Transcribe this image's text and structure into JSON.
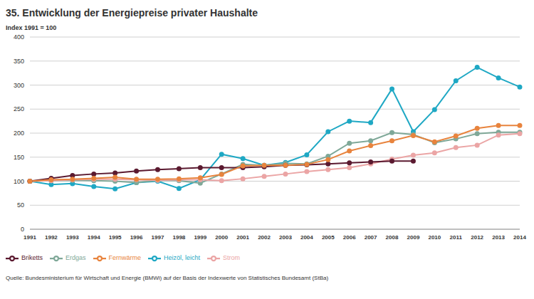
{
  "chart_data": {
    "type": "line",
    "title": "35. Entwicklung der Energiepreise privater Haushalte",
    "subtitle": "Index 1991 = 100",
    "source": "Quelle: Bundesministerium für Wirtschaft und Energie (BMWi) auf der Basis der Indexwerte von Statistisches Bundesamt (StBa)",
    "categories": [
      "1991",
      "1992",
      "1993",
      "1994",
      "1995",
      "1996",
      "1997",
      "1998",
      "1999",
      "2000",
      "2001",
      "2002",
      "2003",
      "2004",
      "2005",
      "2006",
      "2007",
      "2008",
      "2009",
      "2010",
      "2011",
      "2012",
      "2013",
      "2014"
    ],
    "series": [
      {
        "name": "Heizöl, leicht",
        "color": "#1fa8c4",
        "values": [
          100,
          93,
          95,
          89,
          84,
          97,
          100,
          85,
          103,
          156,
          147,
          133,
          139,
          155,
          203,
          225,
          222,
          292,
          203,
          249,
          309,
          337,
          315,
          296
        ]
      },
      {
        "name": "Erdgas",
        "color": "#7fa898",
        "values": [
          100,
          101,
          102,
          101,
          100,
          97,
          102,
          101,
          96,
          115,
          135,
          133,
          137,
          136,
          152,
          179,
          184,
          201,
          197,
          180,
          188,
          199,
          202,
          202
        ]
      },
      {
        "name": "Strom",
        "color": "#eba5a5",
        "values": [
          100,
          101,
          103,
          104,
          104,
          103,
          102,
          103,
          103,
          101,
          105,
          110,
          115,
          120,
          124,
          128,
          136,
          146,
          154,
          159,
          170,
          175,
          196,
          199
        ]
      },
      {
        "name": "Briketts",
        "color": "#5b1a30",
        "values": [
          100,
          106,
          112,
          115,
          117,
          121,
          124,
          126,
          128,
          128,
          128,
          130,
          133,
          134,
          136,
          138,
          140,
          142,
          142,
          null,
          null,
          null,
          null,
          null
        ]
      },
      {
        "name": "Fernwärme",
        "color": "#e8843e",
        "values": [
          100,
          103,
          104,
          106,
          108,
          104,
          104,
          105,
          107,
          114,
          132,
          133,
          133,
          135,
          145,
          163,
          174,
          184,
          195,
          182,
          194,
          210,
          216,
          216
        ]
      }
    ],
    "ylim": [
      0,
      400
    ],
    "yticks": [
      0,
      50,
      100,
      150,
      200,
      250,
      300,
      350,
      400
    ],
    "grid": true,
    "legend": "bottom-left",
    "marker": "circle"
  }
}
